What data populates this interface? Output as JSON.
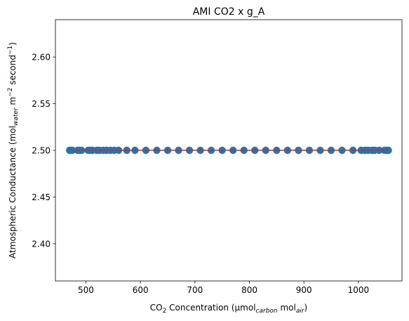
{
  "chart_data": {
    "type": "scatter",
    "title": "AMI CO2 x g_A",
    "xlabel": {
      "parts": [
        {
          "t": "CO"
        },
        {
          "t": "2",
          "s": "sub"
        },
        {
          "t": " Concentration (µmol"
        },
        {
          "t": "carbon",
          "s": "sub-it"
        },
        {
          "t": " mol"
        },
        {
          "t": "air",
          "s": "sub-it"
        },
        {
          "t": ")"
        }
      ]
    },
    "ylabel": {
      "parts": [
        {
          "t": "Atmospheric Conductance (mol"
        },
        {
          "t": "water",
          "s": "sub-it"
        },
        {
          "t": " m"
        },
        {
          "t": "−2",
          "s": "sup"
        },
        {
          "t": " second"
        },
        {
          "t": "−1",
          "s": "sup"
        },
        {
          "t": ")"
        }
      ]
    },
    "xlim": [
      444,
      1080
    ],
    "ylim": [
      2.36,
      2.64
    ],
    "x_ticks": [
      500,
      600,
      700,
      800,
      900,
      1000
    ],
    "x_tick_labels": [
      "500",
      "600",
      "700",
      "800",
      "900",
      "1000"
    ],
    "y_ticks": [
      2.4,
      2.45,
      2.5,
      2.55,
      2.6
    ],
    "y_tick_labels": [
      "2.40",
      "2.45",
      "2.50",
      "2.55",
      "2.60"
    ],
    "grid": false,
    "series": [
      {
        "marker": "circle",
        "color": "#1f77b4",
        "x": [
          470,
          472,
          475,
          485,
          488,
          492,
          504,
          507,
          512,
          520,
          525,
          532,
          538,
          545,
          552,
          560,
          575,
          590,
          610,
          630,
          650,
          670,
          690,
          710,
          730,
          750,
          770,
          790,
          810,
          830,
          850,
          870,
          890,
          910,
          930,
          950,
          970,
          990,
          1005,
          1012,
          1018,
          1025,
          1030,
          1038,
          1048,
          1052,
          1055
        ],
        "y": [
          2.5,
          2.5,
          2.5,
          2.5,
          2.5,
          2.5,
          2.5,
          2.5,
          2.5,
          2.5,
          2.5,
          2.5,
          2.5,
          2.5,
          2.5,
          2.5,
          2.5,
          2.5,
          2.5,
          2.5,
          2.5,
          2.5,
          2.5,
          2.5,
          2.5,
          2.5,
          2.5,
          2.5,
          2.5,
          2.5,
          2.5,
          2.5,
          2.5,
          2.5,
          2.5,
          2.5,
          2.5,
          2.5,
          2.5,
          2.5,
          2.5,
          2.5,
          2.5,
          2.5,
          2.5,
          2.5,
          2.5
        ]
      }
    ],
    "fit_line": {
      "color": "#d62728",
      "x": [
        470,
        1055
      ],
      "y": [
        2.5,
        2.5
      ]
    }
  }
}
